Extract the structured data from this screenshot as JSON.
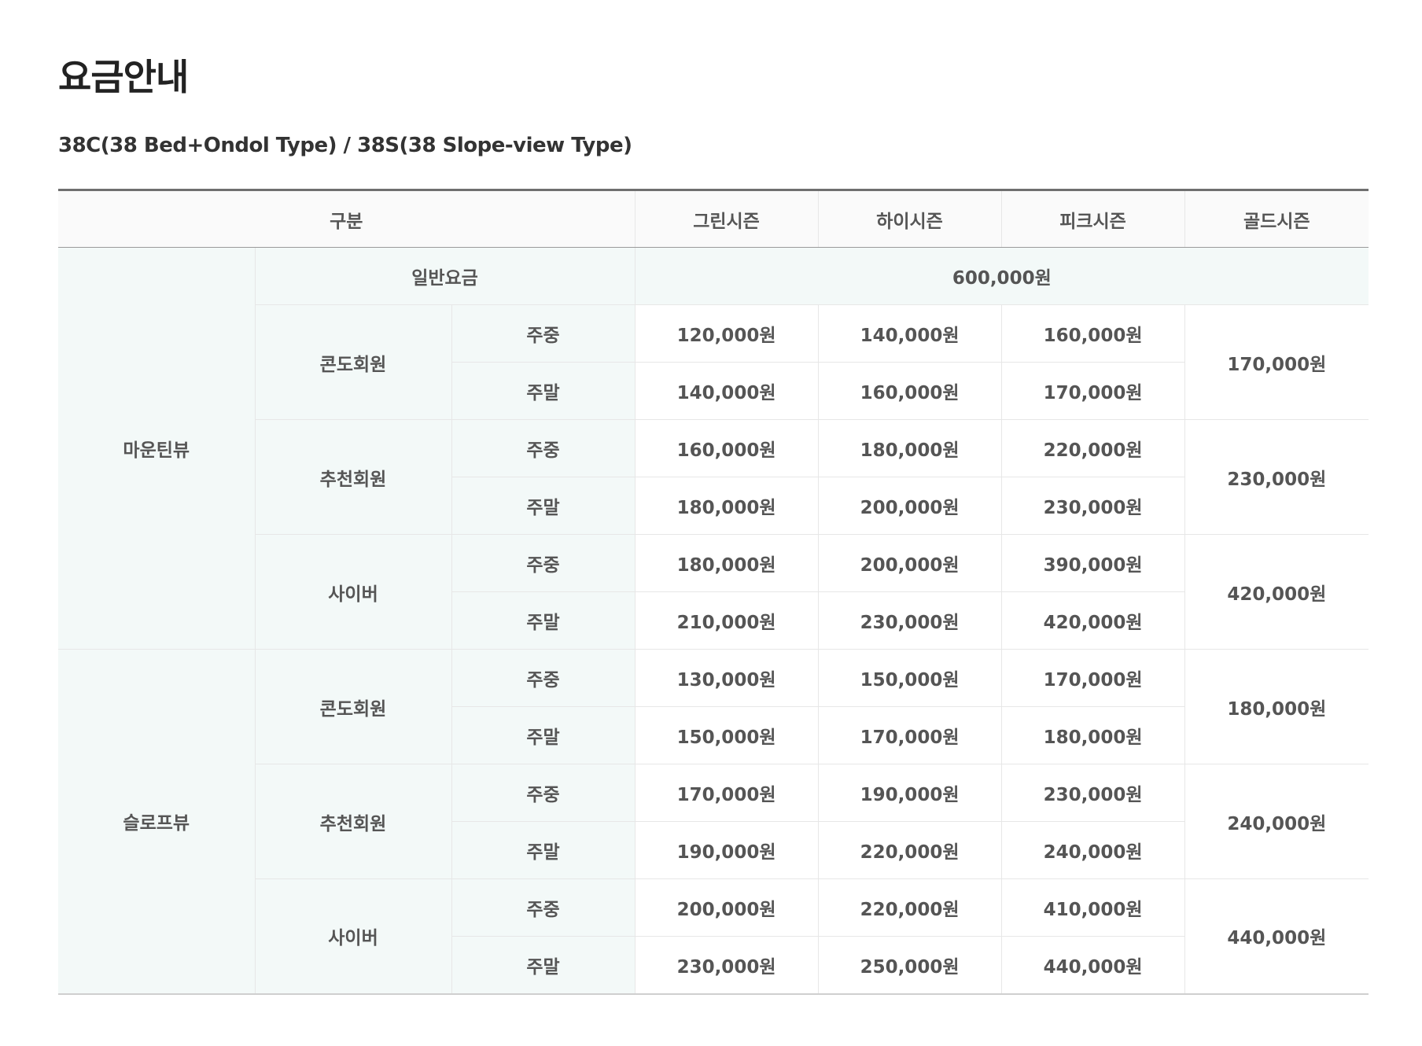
{
  "title": "요금안내",
  "subtitle": "38C(38 Bed+Ondol Type) / 38S(38 Slope-view Type)",
  "table": {
    "header": {
      "category": "구분",
      "green": "그린시즌",
      "high": "하이시즌",
      "peak": "피크시즌",
      "gold": "골드시즌"
    },
    "general": {
      "label": "일반요금",
      "value": "600,000원"
    },
    "weekday": "주중",
    "weekend": "주말",
    "views": [
      {
        "label": "마운틴뷰",
        "groups": [
          {
            "label": "콘도회원",
            "weekday": [
              "120,000원",
              "140,000원",
              "160,000원"
            ],
            "weekend": [
              "140,000원",
              "160,000원",
              "170,000원"
            ],
            "gold": "170,000원"
          },
          {
            "label": "추천회원",
            "weekday": [
              "160,000원",
              "180,000원",
              "220,000원"
            ],
            "weekend": [
              "180,000원",
              "200,000원",
              "230,000원"
            ],
            "gold": "230,000원"
          },
          {
            "label": "사이버",
            "weekday": [
              "180,000원",
              "200,000원",
              "390,000원"
            ],
            "weekend": [
              "210,000원",
              "230,000원",
              "420,000원"
            ],
            "gold": "420,000원"
          }
        ]
      },
      {
        "label": "슬로프뷰",
        "groups": [
          {
            "label": "콘도회원",
            "weekday": [
              "130,000원",
              "150,000원",
              "170,000원"
            ],
            "weekend": [
              "150,000원",
              "170,000원",
              "180,000원"
            ],
            "gold": "180,000원"
          },
          {
            "label": "추천회원",
            "weekday": [
              "170,000원",
              "190,000원",
              "230,000원"
            ],
            "weekend": [
              "190,000원",
              "220,000원",
              "240,000원"
            ],
            "gold": "240,000원"
          },
          {
            "label": "사이버",
            "weekday": [
              "200,000원",
              "220,000원",
              "410,000원"
            ],
            "weekend": [
              "230,000원",
              "250,000원",
              "440,000원"
            ],
            "gold": "440,000원"
          }
        ]
      }
    ]
  }
}
